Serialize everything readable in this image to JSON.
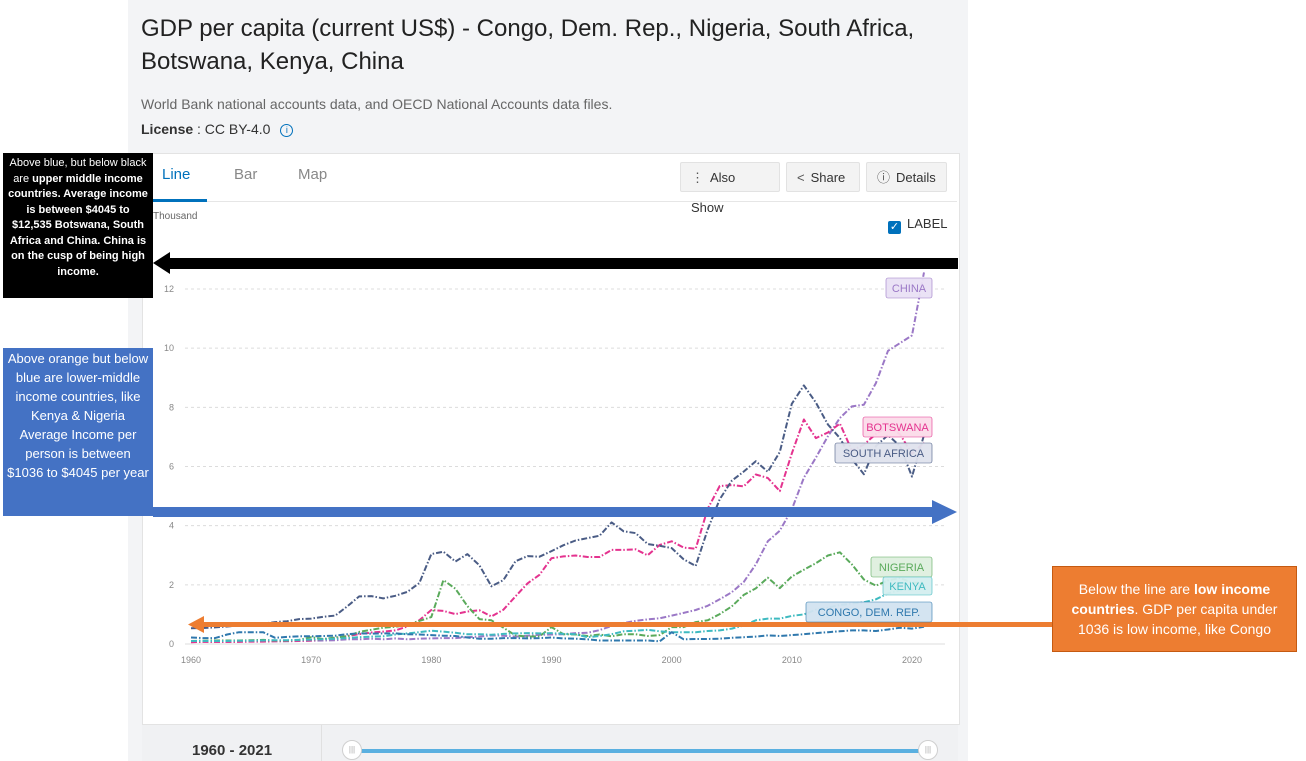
{
  "header": {
    "title": "GDP per capita (current US$) - Congo, Dem. Rep., Nigeria, South Africa, Botswana, Kenya, China",
    "source": "World Bank national accounts data, and OECD National Accounts data files.",
    "license_label": "License",
    "license_value": ": CC BY-4.0",
    "info_icon": "info-icon"
  },
  "tabs": [
    {
      "label": "Line",
      "active": true
    },
    {
      "label": "Bar",
      "active": false
    },
    {
      "label": "Map",
      "active": false
    }
  ],
  "toolbar": {
    "also_show": "Also Show",
    "share": "Share",
    "details": "Details",
    "icons": {
      "also_show": "vertical-dots-icon",
      "share": "share-icon",
      "details": "info-icon"
    }
  },
  "label_toggle": {
    "label": "LABEL",
    "checked": true
  },
  "slider": {
    "range_text": "1960 - 2021",
    "start_year": 1960,
    "end_year": 2021
  },
  "annotations": {
    "black": {
      "p1": "Above blue, but below black are ",
      "p2": "upper middle income countries. Average income is between $4045 to $12,535 Botswana, South Africa and China. China is on the cusp of being high income."
    },
    "blue": "Above orange but below blue are lower-middle income countries, like Kenya & Nigeria Average Income per person is between $1036 to $4045 per year",
    "orange": {
      "p1": "Below the line are ",
      "bold": "low income countries",
      "p2": ". GDP per capita under 1036 is low income, like Congo"
    },
    "colors": {
      "black": "#000000",
      "blue": "#4472c4",
      "orange": "#ed7d31"
    }
  },
  "chart_data": {
    "type": "line",
    "ylabel": "Thousand",
    "x": [
      1960,
      1961,
      1962,
      1963,
      1964,
      1965,
      1966,
      1967,
      1968,
      1969,
      1970,
      1971,
      1972,
      1973,
      1974,
      1975,
      1976,
      1977,
      1978,
      1979,
      1980,
      1981,
      1982,
      1983,
      1984,
      1985,
      1986,
      1987,
      1988,
      1989,
      1990,
      1991,
      1992,
      1993,
      1994,
      1995,
      1996,
      1997,
      1998,
      1999,
      2000,
      2001,
      2002,
      2003,
      2004,
      2005,
      2006,
      2007,
      2008,
      2009,
      2010,
      2011,
      2012,
      2013,
      2014,
      2015,
      2016,
      2017,
      2018,
      2019,
      2020,
      2021
    ],
    "xticks": [
      1960,
      1970,
      1980,
      1990,
      2000,
      2010,
      2020
    ],
    "yticks": [
      0,
      2,
      4,
      6,
      8,
      10,
      12
    ],
    "ylim": [
      0,
      13
    ],
    "grid": true,
    "series": [
      {
        "name": "CHINA",
        "color": "#9b78c6",
        "values": [
          0.09,
          0.08,
          0.07,
          0.07,
          0.08,
          0.1,
          0.1,
          0.09,
          0.09,
          0.1,
          0.11,
          0.12,
          0.13,
          0.16,
          0.16,
          0.18,
          0.16,
          0.19,
          0.16,
          0.18,
          0.19,
          0.2,
          0.2,
          0.23,
          0.25,
          0.29,
          0.28,
          0.25,
          0.28,
          0.31,
          0.32,
          0.33,
          0.37,
          0.38,
          0.47,
          0.61,
          0.71,
          0.78,
          0.83,
          0.87,
          0.96,
          1.05,
          1.15,
          1.29,
          1.51,
          1.75,
          2.1,
          2.69,
          3.47,
          3.83,
          4.55,
          5.62,
          6.3,
          7.02,
          7.64,
          8.03,
          8.09,
          8.82,
          9.91,
          10.17,
          10.43,
          12.56
        ]
      },
      {
        "name": "BOTSWANA",
        "color": "#e4338f",
        "values": [
          0.06,
          0.07,
          0.07,
          0.07,
          0.07,
          0.08,
          0.08,
          0.09,
          0.1,
          0.11,
          0.12,
          0.16,
          0.2,
          0.27,
          0.33,
          0.39,
          0.42,
          0.46,
          0.59,
          0.8,
          1.15,
          1.12,
          1.01,
          1.1,
          1.14,
          0.93,
          1.16,
          1.61,
          2.05,
          2.34,
          2.9,
          2.96,
          2.99,
          2.94,
          2.94,
          3.18,
          3.18,
          3.2,
          3.0,
          3.35,
          3.47,
          3.26,
          3.22,
          4.57,
          5.34,
          5.37,
          5.33,
          5.73,
          5.61,
          5.17,
          6.44,
          7.59,
          6.96,
          7.15,
          7.45,
          6.54,
          6.74,
          7.1,
          7.37,
          7.09,
          6.43,
          6.81
        ]
      },
      {
        "name": "SOUTH AFRICA",
        "color": "#4a5c85",
        "values": [
          0.53,
          0.54,
          0.56,
          0.59,
          0.63,
          0.66,
          0.69,
          0.74,
          0.77,
          0.84,
          0.86,
          0.92,
          0.96,
          1.27,
          1.61,
          1.62,
          1.54,
          1.63,
          1.76,
          2.06,
          3.04,
          3.12,
          2.79,
          3.04,
          2.66,
          1.95,
          2.16,
          2.8,
          2.97,
          2.95,
          3.14,
          3.34,
          3.5,
          3.58,
          3.66,
          4.11,
          3.81,
          3.75,
          3.38,
          3.32,
          3.24,
          2.86,
          2.64,
          3.87,
          4.89,
          5.52,
          5.83,
          6.18,
          5.82,
          6.49,
          8.12,
          8.74,
          8.16,
          7.42,
          6.96,
          6.25,
          5.74,
          6.69,
          7.06,
          6.69,
          5.66,
          7.06
        ]
      },
      {
        "name": "NIGERIA",
        "color": "#5aaa5b",
        "values": [
          0.1,
          0.11,
          0.12,
          0.12,
          0.12,
          0.13,
          0.14,
          0.12,
          0.12,
          0.14,
          0.23,
          0.17,
          0.22,
          0.26,
          0.41,
          0.48,
          0.55,
          0.58,
          0.64,
          0.78,
          0.91,
          2.16,
          1.87,
          1.28,
          0.84,
          0.8,
          0.55,
          0.29,
          0.25,
          0.26,
          0.57,
          0.33,
          0.32,
          0.27,
          0.32,
          0.26,
          0.33,
          0.33,
          0.27,
          0.3,
          0.57,
          0.57,
          0.74,
          0.8,
          1.01,
          1.27,
          1.66,
          1.88,
          2.24,
          1.89,
          2.28,
          2.51,
          2.73,
          2.99,
          3.1,
          2.69,
          2.18,
          1.97,
          2.15,
          2.23,
          2.07,
          2.08
        ]
      },
      {
        "name": "KENYA",
        "color": "#3fbac0",
        "values": [
          0.1,
          0.1,
          0.1,
          0.1,
          0.11,
          0.11,
          0.12,
          0.13,
          0.13,
          0.14,
          0.15,
          0.16,
          0.18,
          0.2,
          0.23,
          0.25,
          0.26,
          0.32,
          0.36,
          0.4,
          0.45,
          0.42,
          0.38,
          0.33,
          0.33,
          0.31,
          0.34,
          0.36,
          0.37,
          0.36,
          0.37,
          0.34,
          0.33,
          0.23,
          0.27,
          0.33,
          0.43,
          0.45,
          0.48,
          0.43,
          0.4,
          0.4,
          0.4,
          0.44,
          0.46,
          0.52,
          0.63,
          0.8,
          0.86,
          0.86,
          0.95,
          1.0,
          1.16,
          1.23,
          1.32,
          1.37,
          1.41,
          1.51,
          1.71,
          1.82,
          1.84,
          2.01
        ]
      },
      {
        "name": "CONGO, DEM. REP.",
        "color": "#2f78ad",
        "values": [
          0.22,
          0.2,
          0.2,
          0.32,
          0.4,
          0.4,
          0.4,
          0.21,
          0.24,
          0.26,
          0.26,
          0.27,
          0.28,
          0.33,
          0.36,
          0.35,
          0.36,
          0.36,
          0.33,
          0.32,
          0.3,
          0.28,
          0.27,
          0.22,
          0.18,
          0.18,
          0.2,
          0.2,
          0.19,
          0.2,
          0.22,
          0.19,
          0.18,
          0.16,
          0.12,
          0.12,
          0.12,
          0.12,
          0.12,
          0.09,
          0.4,
          0.16,
          0.17,
          0.17,
          0.18,
          0.21,
          0.23,
          0.25,
          0.29,
          0.27,
          0.3,
          0.33,
          0.37,
          0.4,
          0.43,
          0.46,
          0.46,
          0.44,
          0.49,
          0.55,
          0.52,
          0.58
        ]
      }
    ]
  }
}
